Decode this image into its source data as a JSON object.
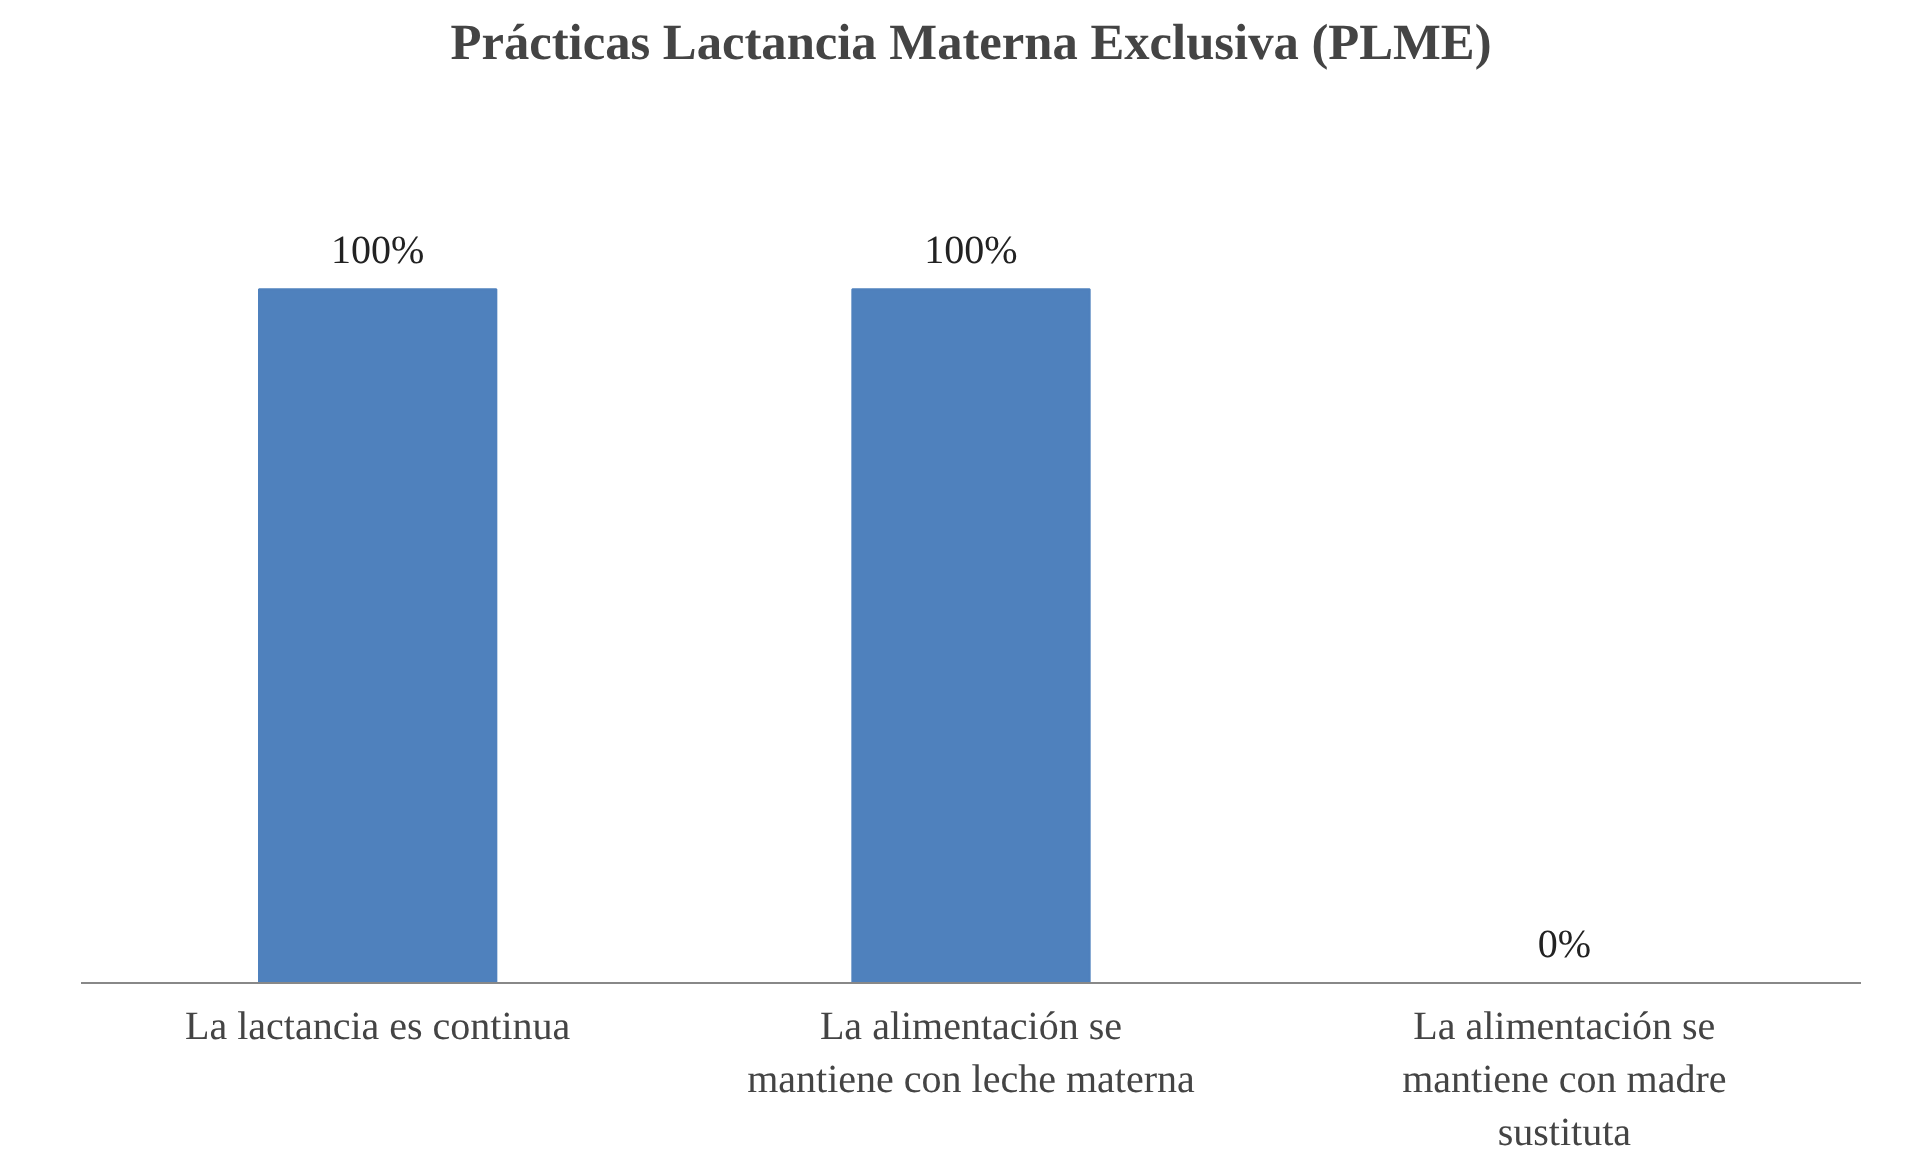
{
  "chart_data": {
    "type": "bar",
    "title": "Prácticas Lactancia Materna Exclusiva (PLME)",
    "categories": [
      "La lactancia es continua",
      "La alimentación se mantiene con leche materna",
      "La alimentación se mantiene con madre sustituta"
    ],
    "values": [
      100,
      100,
      0
    ],
    "value_labels": [
      "100%",
      "100%",
      "0%"
    ],
    "color": "#4f81bd"
  }
}
